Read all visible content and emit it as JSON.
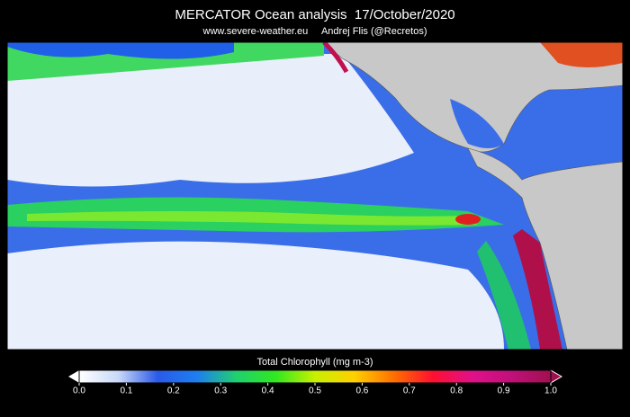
{
  "title": "MERCATOR Ocean analysis  17/October/2020",
  "subtitle": "www.severe-weather.eu     Andrej Flis (@Recretos)",
  "colorbar": {
    "label": "Total Chlorophyll (mg m-3)",
    "lim": [
      0,
      1
    ],
    "ticks": [
      {
        "value": 0,
        "label": "0.0"
      },
      0.1,
      0.2,
      0.3,
      0.4,
      0.5,
      0.6,
      0.7,
      0.8,
      0.9,
      {
        "value": 1,
        "label": "1.0"
      }
    ],
    "colors": [
      "#ffffff",
      "#c8d8f8",
      "#2a5ae8",
      "#1e7ef0",
      "#20d070",
      "#30e820",
      "#c8f000",
      "#ffd000",
      "#ff7000",
      "#ff1030",
      "#e0108a",
      "#c0107a",
      "#a01050"
    ]
  }
}
